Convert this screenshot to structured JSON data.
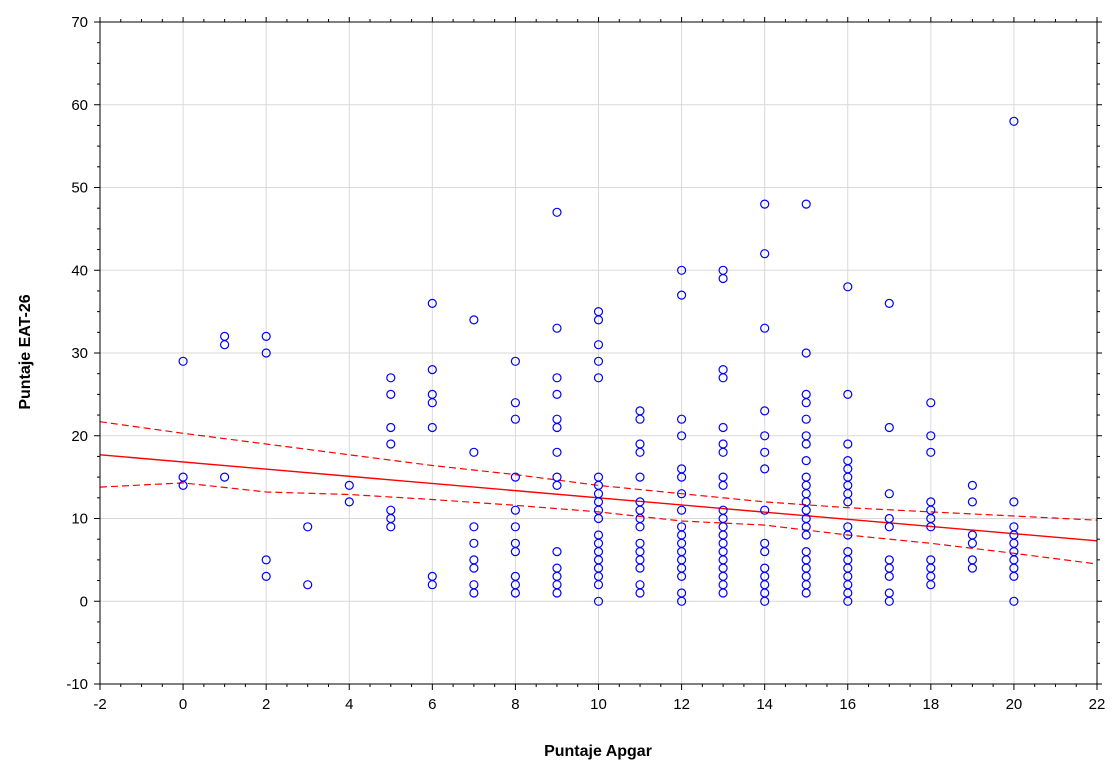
{
  "chart_data": {
    "type": "scatter",
    "title": "",
    "xlabel": "Puntaje Apgar",
    "ylabel": "Puntaje EAT-26",
    "xlim": [
      -2,
      22
    ],
    "ylim": [
      -10,
      70
    ],
    "xticks": [
      -2,
      0,
      2,
      4,
      6,
      8,
      10,
      12,
      14,
      16,
      18,
      20,
      22
    ],
    "yticks": [
      -10,
      0,
      10,
      20,
      30,
      40,
      50,
      60,
      70
    ],
    "grid": true,
    "points": [
      [
        0,
        29
      ],
      [
        0,
        15
      ],
      [
        0,
        14
      ],
      [
        1,
        32
      ],
      [
        1,
        31
      ],
      [
        1,
        15
      ],
      [
        2,
        32
      ],
      [
        2,
        30
      ],
      [
        2,
        5
      ],
      [
        2,
        3
      ],
      [
        3,
        9
      ],
      [
        3,
        2
      ],
      [
        4,
        14
      ],
      [
        4,
        12
      ],
      [
        5,
        27
      ],
      [
        5,
        25
      ],
      [
        5,
        21
      ],
      [
        5,
        19
      ],
      [
        5,
        11
      ],
      [
        5,
        10
      ],
      [
        5,
        9
      ],
      [
        6,
        36
      ],
      [
        6,
        28
      ],
      [
        6,
        25
      ],
      [
        6,
        24
      ],
      [
        6,
        21
      ],
      [
        6,
        3
      ],
      [
        6,
        2
      ],
      [
        7,
        34
      ],
      [
        7,
        18
      ],
      [
        7,
        9
      ],
      [
        7,
        7
      ],
      [
        7,
        5
      ],
      [
        7,
        4
      ],
      [
        7,
        2
      ],
      [
        7,
        1
      ],
      [
        8,
        29
      ],
      [
        8,
        24
      ],
      [
        8,
        22
      ],
      [
        8,
        15
      ],
      [
        8,
        11
      ],
      [
        8,
        9
      ],
      [
        8,
        7
      ],
      [
        8,
        6
      ],
      [
        8,
        3
      ],
      [
        8,
        2
      ],
      [
        8,
        1
      ],
      [
        9,
        47
      ],
      [
        9,
        33
      ],
      [
        9,
        27
      ],
      [
        9,
        25
      ],
      [
        9,
        22
      ],
      [
        9,
        21
      ],
      [
        9,
        18
      ],
      [
        9,
        15
      ],
      [
        9,
        14
      ],
      [
        9,
        6
      ],
      [
        9,
        4
      ],
      [
        9,
        3
      ],
      [
        9,
        2
      ],
      [
        9,
        1
      ],
      [
        10,
        35
      ],
      [
        10,
        34
      ],
      [
        10,
        31
      ],
      [
        10,
        29
      ],
      [
        10,
        27
      ],
      [
        10,
        15
      ],
      [
        10,
        14
      ],
      [
        10,
        13
      ],
      [
        10,
        12
      ],
      [
        10,
        11
      ],
      [
        10,
        10
      ],
      [
        10,
        8
      ],
      [
        10,
        7
      ],
      [
        10,
        6
      ],
      [
        10,
        5
      ],
      [
        10,
        4
      ],
      [
        10,
        3
      ],
      [
        10,
        2
      ],
      [
        10,
        0
      ],
      [
        11,
        23
      ],
      [
        11,
        22
      ],
      [
        11,
        19
      ],
      [
        11,
        18
      ],
      [
        11,
        15
      ],
      [
        11,
        12
      ],
      [
        11,
        11
      ],
      [
        11,
        10
      ],
      [
        11,
        9
      ],
      [
        11,
        7
      ],
      [
        11,
        6
      ],
      [
        11,
        5
      ],
      [
        11,
        4
      ],
      [
        11,
        2
      ],
      [
        11,
        1
      ],
      [
        12,
        40
      ],
      [
        12,
        37
      ],
      [
        12,
        22
      ],
      [
        12,
        20
      ],
      [
        12,
        16
      ],
      [
        12,
        15
      ],
      [
        12,
        13
      ],
      [
        12,
        11
      ],
      [
        12,
        9
      ],
      [
        12,
        8
      ],
      [
        12,
        7
      ],
      [
        12,
        6
      ],
      [
        12,
        5
      ],
      [
        12,
        4
      ],
      [
        12,
        3
      ],
      [
        12,
        1
      ],
      [
        12,
        0
      ],
      [
        13,
        40
      ],
      [
        13,
        39
      ],
      [
        13,
        28
      ],
      [
        13,
        27
      ],
      [
        13,
        21
      ],
      [
        13,
        19
      ],
      [
        13,
        18
      ],
      [
        13,
        15
      ],
      [
        13,
        14
      ],
      [
        13,
        11
      ],
      [
        13,
        10
      ],
      [
        13,
        9
      ],
      [
        13,
        8
      ],
      [
        13,
        7
      ],
      [
        13,
        6
      ],
      [
        13,
        5
      ],
      [
        13,
        4
      ],
      [
        13,
        3
      ],
      [
        13,
        2
      ],
      [
        13,
        1
      ],
      [
        14,
        48
      ],
      [
        14,
        42
      ],
      [
        14,
        33
      ],
      [
        14,
        23
      ],
      [
        14,
        20
      ],
      [
        14,
        18
      ],
      [
        14,
        16
      ],
      [
        14,
        11
      ],
      [
        14,
        7
      ],
      [
        14,
        6
      ],
      [
        14,
        4
      ],
      [
        14,
        3
      ],
      [
        14,
        2
      ],
      [
        14,
        1
      ],
      [
        14,
        0
      ],
      [
        15,
        48
      ],
      [
        15,
        30
      ],
      [
        15,
        25
      ],
      [
        15,
        24
      ],
      [
        15,
        22
      ],
      [
        15,
        20
      ],
      [
        15,
        19
      ],
      [
        15,
        17
      ],
      [
        15,
        15
      ],
      [
        15,
        14
      ],
      [
        15,
        13
      ],
      [
        15,
        12
      ],
      [
        15,
        11
      ],
      [
        15,
        10
      ],
      [
        15,
        9
      ],
      [
        15,
        8
      ],
      [
        15,
        6
      ],
      [
        15,
        5
      ],
      [
        15,
        4
      ],
      [
        15,
        3
      ],
      [
        15,
        2
      ],
      [
        15,
        1
      ],
      [
        16,
        38
      ],
      [
        16,
        25
      ],
      [
        16,
        19
      ],
      [
        16,
        17
      ],
      [
        16,
        16
      ],
      [
        16,
        15
      ],
      [
        16,
        14
      ],
      [
        16,
        13
      ],
      [
        16,
        12
      ],
      [
        16,
        9
      ],
      [
        16,
        8
      ],
      [
        16,
        6
      ],
      [
        16,
        5
      ],
      [
        16,
        4
      ],
      [
        16,
        3
      ],
      [
        16,
        2
      ],
      [
        16,
        1
      ],
      [
        16,
        0
      ],
      [
        17,
        36
      ],
      [
        17,
        21
      ],
      [
        17,
        13
      ],
      [
        17,
        10
      ],
      [
        17,
        9
      ],
      [
        17,
        5
      ],
      [
        17,
        4
      ],
      [
        17,
        3
      ],
      [
        17,
        1
      ],
      [
        17,
        0
      ],
      [
        18,
        24
      ],
      [
        18,
        20
      ],
      [
        18,
        18
      ],
      [
        18,
        12
      ],
      [
        18,
        11
      ],
      [
        18,
        10
      ],
      [
        18,
        9
      ],
      [
        18,
        5
      ],
      [
        18,
        4
      ],
      [
        18,
        3
      ],
      [
        18,
        2
      ],
      [
        19,
        14
      ],
      [
        19,
        12
      ],
      [
        19,
        8
      ],
      [
        19,
        7
      ],
      [
        19,
        5
      ],
      [
        19,
        4
      ],
      [
        20,
        58
      ],
      [
        20,
        12
      ],
      [
        20,
        9
      ],
      [
        20,
        8
      ],
      [
        20,
        7
      ],
      [
        20,
        6
      ],
      [
        20,
        5
      ],
      [
        20,
        4
      ],
      [
        20,
        3
      ],
      [
        20,
        0
      ]
    ],
    "regression": {
      "fit": [
        [
          -2,
          17.7
        ],
        [
          22,
          7.3
        ]
      ],
      "ci_upper": [
        [
          -2,
          21.7
        ],
        [
          0,
          20.3
        ],
        [
          2,
          19.0
        ],
        [
          4,
          17.7
        ],
        [
          6,
          16.4
        ],
        [
          8,
          15.3
        ],
        [
          10,
          14.0
        ],
        [
          12,
          13.0
        ],
        [
          14,
          12.0
        ],
        [
          16,
          11.3
        ],
        [
          18,
          10.8
        ],
        [
          20,
          10.3
        ],
        [
          22,
          9.8
        ]
      ],
      "ci_lower": [
        [
          -2,
          13.8
        ],
        [
          0,
          14.3
        ],
        [
          2,
          13.2
        ],
        [
          4,
          12.9
        ],
        [
          6,
          12.3
        ],
        [
          8,
          11.6
        ],
        [
          10,
          10.8
        ],
        [
          12,
          9.7
        ],
        [
          14,
          9.2
        ],
        [
          16,
          8.0
        ],
        [
          18,
          7.0
        ],
        [
          20,
          5.8
        ],
        [
          22,
          4.5
        ]
      ]
    },
    "colors": {
      "points": "#0000ff",
      "regression": "#ff0000",
      "grid": "#d9d9d9",
      "axes": "#000000"
    }
  }
}
